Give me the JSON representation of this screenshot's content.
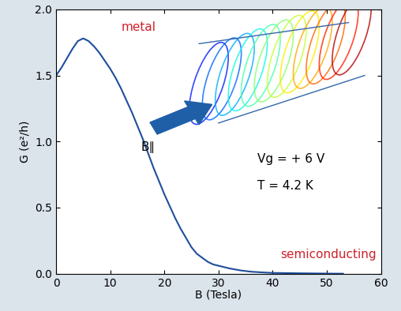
{
  "chart_data": {
    "type": "line",
    "x_label": "B (Tesla)",
    "y_label": "G (e²/h)",
    "annotations": [
      "metal",
      "semiconducting",
      "B∥",
      "Vg = + 6 V",
      "T = 4.2 K"
    ],
    "series": [
      {
        "name": "G",
        "color": "#1f4e9c",
        "x": [
          0,
          1,
          2,
          3,
          4,
          5,
          6,
          7,
          8,
          9,
          10,
          11,
          12,
          13,
          14,
          15,
          16,
          17,
          18,
          19,
          20,
          21,
          22,
          23,
          24,
          25,
          26,
          27,
          28,
          29,
          30,
          32,
          34,
          36,
          38,
          40,
          45,
          50,
          53
        ],
        "values": [
          1.5,
          1.56,
          1.63,
          1.7,
          1.76,
          1.78,
          1.76,
          1.72,
          1.67,
          1.61,
          1.55,
          1.48,
          1.4,
          1.31,
          1.22,
          1.12,
          1.02,
          0.91,
          0.8,
          0.7,
          0.6,
          0.51,
          0.42,
          0.34,
          0.27,
          0.2,
          0.15,
          0.12,
          0.09,
          0.07,
          0.06,
          0.04,
          0.025,
          0.015,
          0.01,
          0.006,
          0.003,
          0.001,
          0.0
        ]
      }
    ],
    "xlim": [
      0,
      60
    ],
    "xticks": [
      0,
      10,
      20,
      30,
      40,
      50,
      60
    ],
    "ylim": [
      0,
      2.0
    ],
    "yticks": [
      {
        "value": 0,
        "label": "0.0"
      },
      {
        "value": 0.5,
        "label": "0.5"
      },
      {
        "value": 1.0,
        "label": "1.0"
      },
      {
        "value": 1.5,
        "label": "1.5"
      },
      {
        "value": 2.0,
        "label": "2.0"
      }
    ],
    "grid": false
  }
}
